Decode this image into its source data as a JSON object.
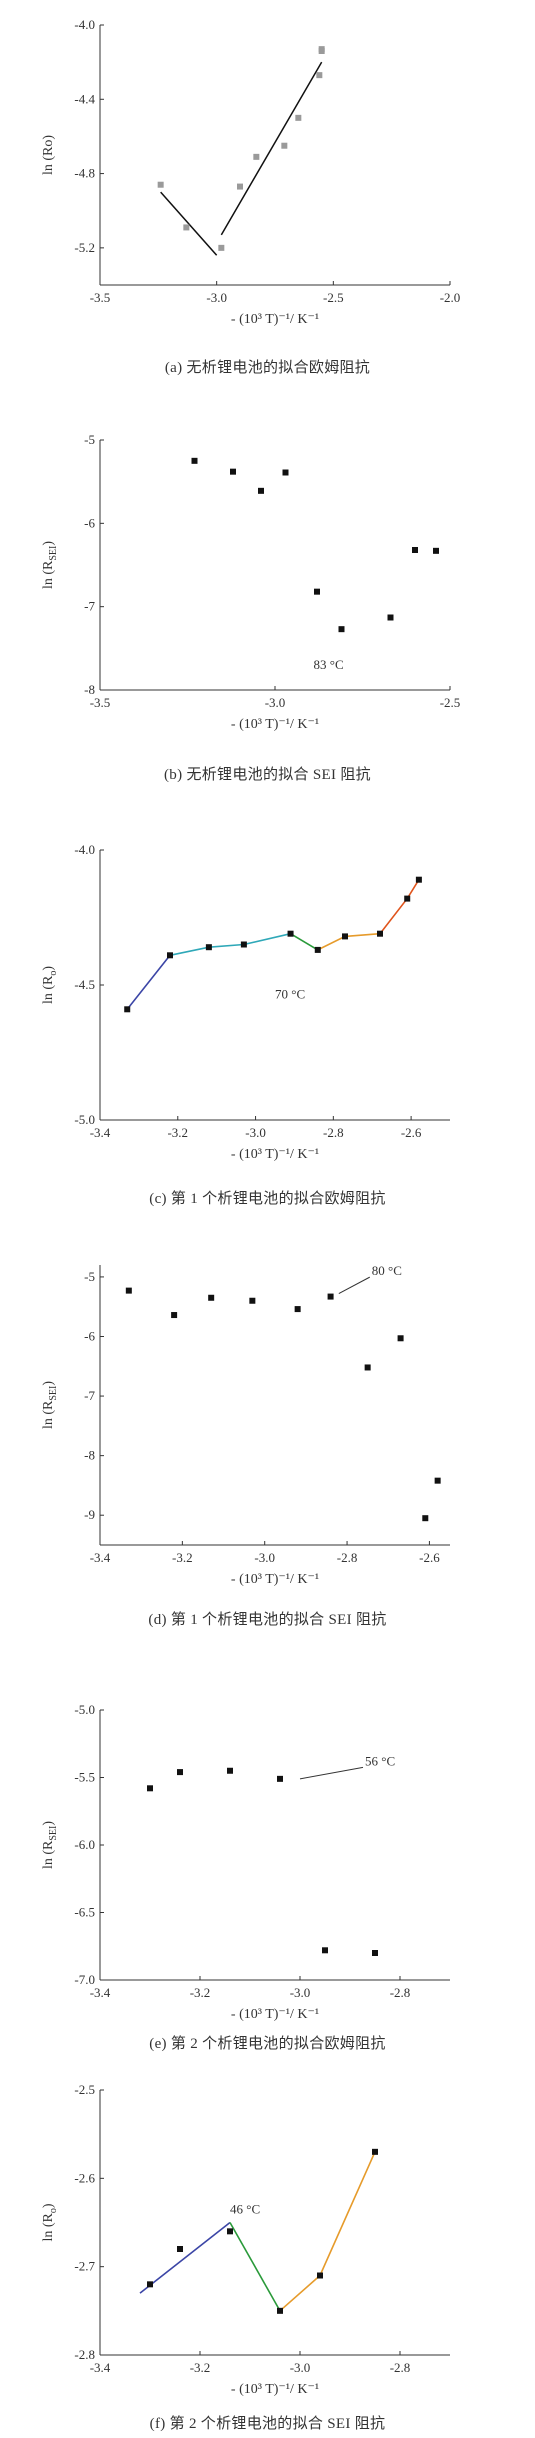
{
  "colors": {
    "axis": "#333333",
    "marker_black": "#111111",
    "marker_gray": "#9a9a9a",
    "fit_black": "#111111",
    "seg_blue": "#3b45a6",
    "seg_teal": "#2fa8b8",
    "seg_green": "#2a9a3a",
    "seg_orange": "#e69b2b",
    "seg_red": "#e0541c"
  },
  "panels": [
    {
      "caption": "(a) 无析锂电池的拟合欧姆阻抗",
      "chart_data": {
        "type": "scatter",
        "xlabel": "- (10³ T)⁻¹/ K⁻¹",
        "ylabel": "ln (Ro)",
        "xlim": [
          -3.5,
          -2.0
        ],
        "ylim": [
          -5.4,
          -4.0
        ],
        "x_ticks": [
          "-3.5",
          "-3.0",
          "-2.5",
          "-2.0"
        ],
        "y_ticks": [
          "-4.0",
          "-4.4",
          "-4.8",
          "-5.2"
        ],
        "x_tick_values": [
          -3.5,
          -3.0,
          -2.5,
          -2.0
        ],
        "y_tick_values": [
          -4.0,
          -4.4,
          -4.8,
          -5.2
        ],
        "marker_color": "gray",
        "points": [
          {
            "x": -3.24,
            "y": -4.86
          },
          {
            "x": -3.13,
            "y": -5.09
          },
          {
            "x": -2.98,
            "y": -5.2
          },
          {
            "x": -2.9,
            "y": -4.87
          },
          {
            "x": -2.83,
            "y": -4.71
          },
          {
            "x": -2.71,
            "y": -4.65
          },
          {
            "x": -2.65,
            "y": -4.5
          },
          {
            "x": -2.56,
            "y": -4.27
          },
          {
            "x": -2.55,
            "y": -4.14
          },
          {
            "x": -2.55,
            "y": -4.13
          }
        ],
        "fit_lines": [
          {
            "color": "black",
            "points": [
              {
                "x": -3.24,
                "y": -4.9
              },
              {
                "x": -3.0,
                "y": -5.24
              }
            ]
          },
          {
            "color": "black",
            "points": [
              {
                "x": -2.98,
                "y": -5.13
              },
              {
                "x": -2.55,
                "y": -4.2
              }
            ]
          }
        ]
      }
    },
    {
      "caption": "(b) 无析锂电池的拟合 SEI 阻抗",
      "chart_data": {
        "type": "scatter",
        "xlabel": "- (10³ T)⁻¹/ K⁻¹",
        "ylabel_main": "ln (R",
        "ylabel_sub": "SEI",
        "ylabel_end": ")",
        "xlim": [
          -3.5,
          -2.5
        ],
        "ylim": [
          -8,
          -5
        ],
        "x_ticks": [
          "-3.5",
          "-3.0",
          "-2.5"
        ],
        "y_ticks": [
          "-5",
          "-6",
          "-7",
          "-8"
        ],
        "x_tick_values": [
          -3.5,
          -3.0,
          -2.5
        ],
        "y_tick_values": [
          -5,
          -6,
          -7,
          -8
        ],
        "marker_color": "black",
        "points": [
          {
            "x": -3.23,
            "y": -5.25
          },
          {
            "x": -3.12,
            "y": -5.38
          },
          {
            "x": -3.04,
            "y": -5.61
          },
          {
            "x": -2.97,
            "y": -5.39
          },
          {
            "x": -2.88,
            "y": -6.82
          },
          {
            "x": -2.81,
            "y": -7.27
          },
          {
            "x": -2.67,
            "y": -7.13
          },
          {
            "x": -2.6,
            "y": -6.32
          },
          {
            "x": -2.54,
            "y": -6.33
          }
        ],
        "annotations": [
          {
            "text": "83 °C",
            "x": -2.89,
            "y": -7.75
          }
        ]
      }
    },
    {
      "caption": "(c) 第 1 个析锂电池的拟合欧姆阻抗",
      "chart_data": {
        "type": "line",
        "xlabel": "- (10³ T)⁻¹/ K⁻¹",
        "ylabel_main": "ln (R",
        "ylabel_sub": "o",
        "ylabel_end": ")",
        "xlim": [
          -3.4,
          -2.5
        ],
        "ylim": [
          -5.0,
          -4.0
        ],
        "x_ticks": [
          "-3.4",
          "-3.2",
          "-3.0",
          "-2.8",
          "-2.6"
        ],
        "y_ticks": [
          "-4.0",
          "-4.5",
          "-5.0"
        ],
        "x_tick_values": [
          -3.4,
          -3.2,
          -3.0,
          -2.8,
          -2.6
        ],
        "y_tick_values": [
          -4.0,
          -4.5,
          -5.0
        ],
        "marker_color": "black",
        "points": [
          {
            "x": -3.33,
            "y": -4.59
          },
          {
            "x": -3.22,
            "y": -4.39
          },
          {
            "x": -3.12,
            "y": -4.36
          },
          {
            "x": -3.03,
            "y": -4.35
          },
          {
            "x": -2.91,
            "y": -4.31
          },
          {
            "x": -2.84,
            "y": -4.37
          },
          {
            "x": -2.77,
            "y": -4.32
          },
          {
            "x": -2.68,
            "y": -4.31
          },
          {
            "x": -2.61,
            "y": -4.18
          },
          {
            "x": -2.58,
            "y": -4.11
          }
        ],
        "segments": [
          {
            "color": "blue",
            "points": [
              {
                "x": -3.33,
                "y": -4.59
              },
              {
                "x": -3.22,
                "y": -4.39
              }
            ]
          },
          {
            "color": "teal",
            "points": [
              {
                "x": -3.22,
                "y": -4.39
              },
              {
                "x": -3.12,
                "y": -4.36
              },
              {
                "x": -3.03,
                "y": -4.35
              },
              {
                "x": -2.91,
                "y": -4.31
              }
            ]
          },
          {
            "color": "green",
            "points": [
              {
                "x": -2.91,
                "y": -4.31
              },
              {
                "x": -2.84,
                "y": -4.37
              }
            ]
          },
          {
            "color": "orange",
            "points": [
              {
                "x": -2.84,
                "y": -4.37
              },
              {
                "x": -2.77,
                "y": -4.32
              },
              {
                "x": -2.68,
                "y": -4.31
              }
            ]
          },
          {
            "color": "red",
            "points": [
              {
                "x": -2.68,
                "y": -4.31
              },
              {
                "x": -2.61,
                "y": -4.18
              },
              {
                "x": -2.58,
                "y": -4.11
              }
            ]
          }
        ],
        "annotations": [
          {
            "text": "70 °C",
            "x": -2.95,
            "y": -4.55
          }
        ]
      }
    },
    {
      "caption": "(d) 第 1 个析锂电池的拟合 SEI 阻抗",
      "chart_data": {
        "type": "scatter",
        "xlabel": "- (10³ T)⁻¹/ K⁻¹",
        "ylabel_main": "ln (R",
        "ylabel_sub": "SEI",
        "ylabel_end": ")",
        "xlim": [
          -3.4,
          -2.55
        ],
        "ylim": [
          -9.5,
          -4.8
        ],
        "x_ticks": [
          "-3.4",
          "-3.2",
          "-3.0",
          "-2.8",
          "-2.6"
        ],
        "y_ticks": [
          "-5",
          "-6",
          "-7",
          "-8",
          "-9"
        ],
        "x_tick_values": [
          -3.4,
          -3.2,
          -3.0,
          -2.8,
          -2.6
        ],
        "y_tick_values": [
          -5,
          -6,
          -7,
          -8,
          -9
        ],
        "marker_color": "black",
        "points": [
          {
            "x": -3.33,
            "y": -5.23
          },
          {
            "x": -3.22,
            "y": -5.64
          },
          {
            "x": -3.13,
            "y": -5.35
          },
          {
            "x": -3.03,
            "y": -5.4
          },
          {
            "x": -2.92,
            "y": -5.54
          },
          {
            "x": -2.84,
            "y": -5.33
          },
          {
            "x": -2.75,
            "y": -6.52
          },
          {
            "x": -2.67,
            "y": -6.03
          },
          {
            "x": -2.61,
            "y": -9.05
          },
          {
            "x": -2.58,
            "y": -8.42
          }
        ],
        "annotations": [
          {
            "text": "80 °C",
            "x": -2.74,
            "y": -4.97,
            "leader_to": {
              "x": -2.82,
              "y": -5.28
            }
          }
        ]
      }
    },
    {
      "caption": "(e) 第 2 个析锂电池的拟合欧姆阻抗",
      "chart_data": {
        "type": "scatter",
        "xlabel": "- (10³ T)⁻¹/ K⁻¹",
        "ylabel_main": "ln (R",
        "ylabel_sub": "SEI",
        "ylabel_end": ")",
        "xlim": [
          -3.4,
          -2.7
        ],
        "ylim": [
          -7.0,
          -5.0
        ],
        "x_ticks": [
          "-3.4",
          "-3.2",
          "-3.0",
          "-2.8"
        ],
        "y_ticks": [
          "-5.0",
          "-5.5",
          "-6.0",
          "-6.5",
          "-7.0"
        ],
        "x_tick_values": [
          -3.4,
          -3.2,
          -3.0,
          -2.8
        ],
        "y_tick_values": [
          -5.0,
          -5.5,
          -6.0,
          -6.5,
          -7.0
        ],
        "marker_color": "black",
        "points": [
          {
            "x": -3.3,
            "y": -5.58
          },
          {
            "x": -3.24,
            "y": -5.46
          },
          {
            "x": -3.14,
            "y": -5.45
          },
          {
            "x": -3.04,
            "y": -5.51
          },
          {
            "x": -2.95,
            "y": -6.78
          },
          {
            "x": -2.85,
            "y": -6.8
          }
        ],
        "annotations": [
          {
            "text": "56 °C",
            "x": -2.87,
            "y": -5.41,
            "leader_to": {
              "x": -3.0,
              "y": -5.51
            }
          }
        ]
      }
    },
    {
      "caption": "(f) 第 2 个析锂电池的拟合 SEI 阻抗",
      "chart_data": {
        "type": "line",
        "xlabel": "- (10³ T)⁻¹/ K⁻¹",
        "ylabel_main": "ln (R",
        "ylabel_sub": "o",
        "ylabel_end": ")",
        "xlim": [
          -3.4,
          -2.7
        ],
        "ylim": [
          -2.8,
          -2.5
        ],
        "x_ticks": [
          "-3.4",
          "-3.2",
          "-3.0",
          "-2.8"
        ],
        "y_ticks": [
          "-2.5",
          "-2.6",
          "-2.7",
          "-2.8"
        ],
        "x_tick_values": [
          -3.4,
          -3.2,
          -3.0,
          -2.8
        ],
        "y_tick_values": [
          -2.5,
          -2.6,
          -2.7,
          -2.8
        ],
        "marker_color": "black",
        "points": [
          {
            "x": -3.3,
            "y": -2.72
          },
          {
            "x": -3.24,
            "y": -2.68
          },
          {
            "x": -3.14,
            "y": -2.66
          },
          {
            "x": -3.04,
            "y": -2.75
          },
          {
            "x": -2.96,
            "y": -2.71
          },
          {
            "x": -2.85,
            "y": -2.57
          }
        ],
        "segments": [
          {
            "color": "blue",
            "points": [
              {
                "x": -3.32,
                "y": -2.73
              },
              {
                "x": -3.14,
                "y": -2.65
              }
            ]
          },
          {
            "color": "green",
            "points": [
              {
                "x": -3.14,
                "y": -2.65
              },
              {
                "x": -3.04,
                "y": -2.75
              }
            ]
          },
          {
            "color": "orange",
            "points": [
              {
                "x": -3.04,
                "y": -2.75
              },
              {
                "x": -2.96,
                "y": -2.71
              },
              {
                "x": -2.85,
                "y": -2.57
              }
            ]
          }
        ],
        "annotations": [
          {
            "text": "46 °C",
            "x": -3.14,
            "y": -2.64
          }
        ]
      }
    }
  ]
}
